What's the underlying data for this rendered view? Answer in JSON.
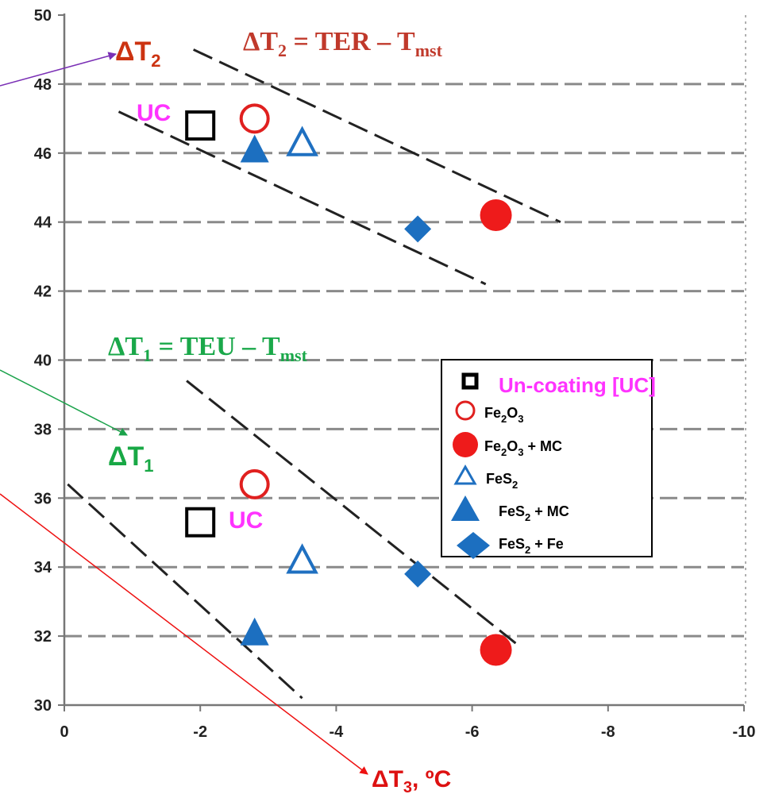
{
  "chart_data": {
    "type": "scatter",
    "x_ticks": [
      "0",
      "-2",
      "-4",
      "-6",
      "-8",
      "-10"
    ],
    "y_ticks": [
      "30",
      "32",
      "34",
      "36",
      "38",
      "40",
      "42",
      "44",
      "46",
      "48",
      "50"
    ],
    "xlim": [
      0,
      -10
    ],
    "ylim": [
      30,
      50
    ],
    "grid": "horizontal dashed",
    "legend_position": "right",
    "series": [
      {
        "name": "Un-coating",
        "name_suffix": "[UC]",
        "marker": "open-square",
        "color": "#000000",
        "points": [
          [
            -2.0,
            46.8
          ],
          [
            -2.0,
            35.3
          ]
        ]
      },
      {
        "name": "Fe",
        "sub1": "2",
        "name_mid": "O",
        "sub2": "3",
        "name_tail": "",
        "marker": "open-circle",
        "color": "#e0201f",
        "points": [
          [
            -2.8,
            47.0
          ],
          [
            -2.8,
            36.4
          ]
        ]
      },
      {
        "name": "Fe",
        "sub1": "2",
        "name_mid": "O",
        "sub2": "3",
        "name_tail": " + MC",
        "marker": "filled-circle",
        "color": "#ee1b1b",
        "points": [
          [
            -6.35,
            44.2
          ],
          [
            -6.35,
            31.6
          ]
        ]
      },
      {
        "name": "FeS",
        "sub1": "2",
        "name_mid": "",
        "sub2": "",
        "name_tail": "",
        "marker": "open-triangle",
        "color": "#1f70c1",
        "points": [
          [
            -3.5,
            46.3
          ],
          [
            -3.5,
            34.2
          ]
        ]
      },
      {
        "name": "FeS",
        "sub1": "2",
        "name_mid": "",
        "sub2": "",
        "name_tail": " + MC",
        "marker": "filled-triangle",
        "color": "#1c6fc0",
        "points": [
          [
            -2.8,
            46.1
          ],
          [
            -2.8,
            32.1
          ]
        ]
      },
      {
        "name": "FeS",
        "sub1": "2",
        "name_mid": "",
        "sub2": "",
        "name_tail": " + Fe",
        "marker": "filled-diamond",
        "color": "#1c6fc0",
        "points": [
          [
            -5.2,
            43.8
          ],
          [
            -5.2,
            33.8
          ]
        ]
      }
    ],
    "guide_lines": [
      [
        [
          -1.9,
          49.0
        ],
        [
          -7.3,
          44.0
        ]
      ],
      [
        [
          -0.8,
          47.2
        ],
        [
          -6.2,
          42.2
        ]
      ],
      [
        [
          -1.8,
          39.4
        ],
        [
          -6.7,
          31.7
        ]
      ],
      [
        [
          -0.05,
          36.4
        ],
        [
          -3.5,
          30.2
        ]
      ]
    ],
    "annotations": {
      "uc_top": "UC",
      "uc_bottom": "UC",
      "dt2_label": {
        "main": "ΔT",
        "sub": "2"
      },
      "dt1_label": {
        "main": "ΔT",
        "sub": "1"
      },
      "dt3_label": {
        "main": "ΔT",
        "sub": "3",
        "tail": ", ºC"
      },
      "eq_top": {
        "lhs": "ΔT",
        "lhs_sub": "2",
        "rhs": " = TER – T",
        "rhs_sub": "mst"
      },
      "eq_mid": {
        "lhs": "ΔT",
        "lhs_sub": "1",
        "rhs": " = TEU – T",
        "rhs_sub": "mst"
      }
    },
    "colors": {
      "eq_top": "#c0392b",
      "eq_mid": "#1aa84a",
      "dt2": "#cc3311",
      "dt1": "#18a845",
      "dt3": "#dd1111",
      "uc": "#ff33ff",
      "arrow_dt2": "#7a2fb5",
      "arrow_dt1": "#1aa24a",
      "arrow_dt3": "#ee1111"
    }
  }
}
